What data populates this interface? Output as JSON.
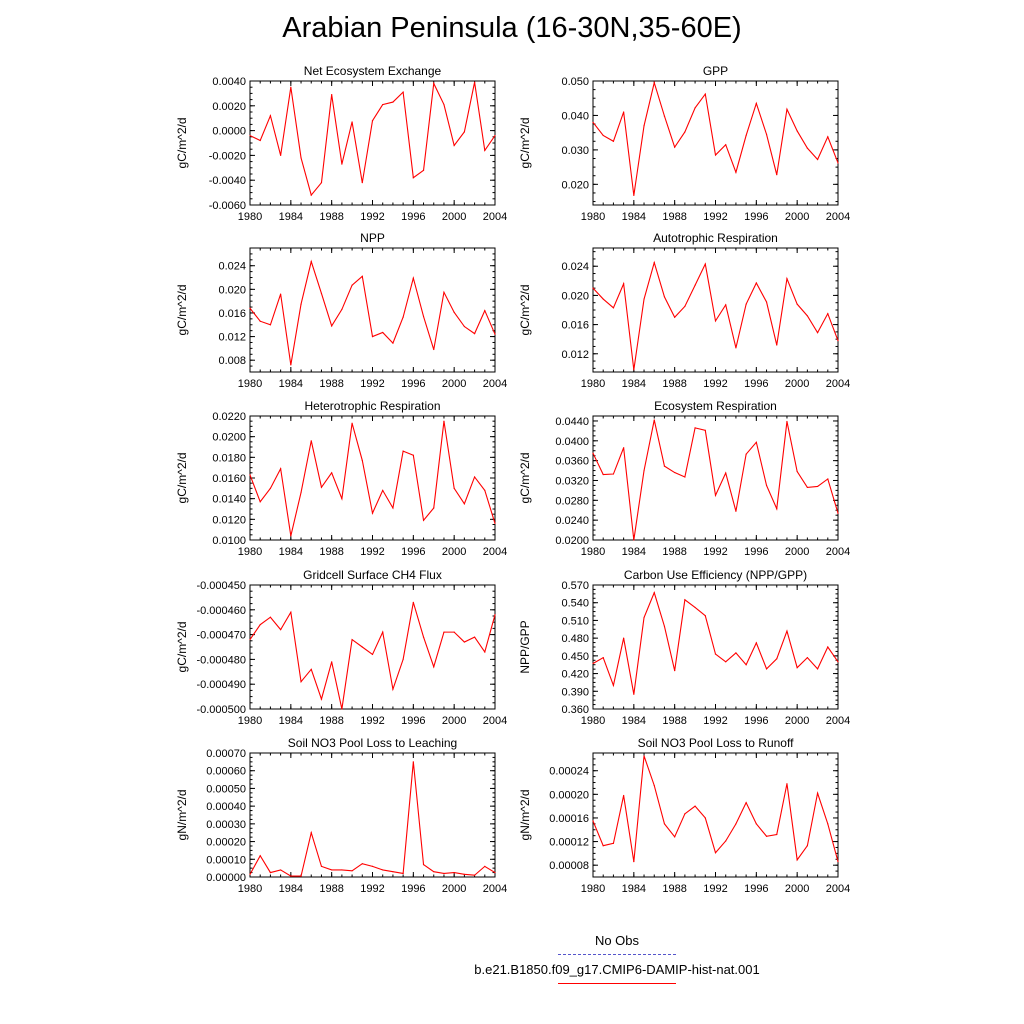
{
  "page_title": "Arabian Peninsula (16-30N,35-60E)",
  "legend": [
    {
      "label": "No Obs",
      "color": "#5555cc",
      "dash": "dashed"
    },
    {
      "label": "b.e21.B1850.f09_g17.CMIP6-DAMIP-hist-nat.001",
      "color": "#ff0000",
      "dash": "solid"
    }
  ],
  "chart_data": [
    {
      "type": "line",
      "title": "Net Ecosystem Exchange",
      "xlabel": "",
      "ylabel": "gC/m^2/d",
      "xlim": [
        1980,
        2004
      ],
      "ylim": [
        -0.006,
        0.004
      ],
      "xticks": [
        "1980",
        "1984",
        "1988",
        "1992",
        "1996",
        "2000",
        "2004"
      ],
      "yticks": [
        "-0.0060",
        "-0.0040",
        "-0.0020",
        "0.0000",
        "0.0020",
        "0.0040"
      ],
      "series": [
        {
          "color": "#ff0000",
          "x": [
            1980,
            1981,
            1982,
            1983,
            1984,
            1985,
            1986,
            1987,
            1988,
            1989,
            1990,
            1991,
            1992,
            1993,
            1994,
            1995,
            1996,
            1997,
            1998,
            1999,
            2000,
            2001,
            2002,
            2003,
            2004
          ],
          "values": [
            -0.0004,
            -0.0008,
            0.0012,
            -0.002,
            0.0035,
            -0.0022,
            -0.0052,
            -0.0042,
            0.0029,
            -0.0027,
            0.0007,
            -0.0042,
            0.0008,
            0.0021,
            0.0023,
            0.0031,
            -0.0038,
            -0.0032,
            0.0038,
            0.0021,
            -0.0012,
            -0.0001,
            0.0039,
            -0.0016,
            -0.0004
          ]
        }
      ]
    },
    {
      "type": "line",
      "title": "GPP",
      "xlabel": "",
      "ylabel": "gC/m^2/d",
      "xlim": [
        1980,
        2004
      ],
      "ylim": [
        0.014,
        0.05
      ],
      "xticks": [
        "1980",
        "1984",
        "1988",
        "1992",
        "1996",
        "2000",
        "2004"
      ],
      "yticks": [
        "0.020",
        "0.030",
        "0.040",
        "0.050"
      ],
      "series": [
        {
          "color": "#ff0000",
          "x": [
            1980,
            1981,
            1982,
            1983,
            1984,
            1985,
            1986,
            1987,
            1988,
            1989,
            1990,
            1991,
            1992,
            1993,
            1994,
            1995,
            1996,
            1997,
            1998,
            1999,
            2000,
            2001,
            2002,
            2003,
            2004
          ],
          "values": [
            0.038,
            0.0342,
            0.0325,
            0.041,
            0.0168,
            0.037,
            0.0495,
            0.0398,
            0.0308,
            0.0352,
            0.0422,
            0.0462,
            0.0285,
            0.0315,
            0.0235,
            0.0342,
            0.0435,
            0.0345,
            0.0228,
            0.0418,
            0.0355,
            0.0305,
            0.0272,
            0.0338,
            0.0262
          ]
        }
      ]
    },
    {
      "type": "line",
      "title": "NPP",
      "xlabel": "",
      "ylabel": "gC/m^2/d",
      "xlim": [
        1980,
        2004
      ],
      "ylim": [
        0.006,
        0.027
      ],
      "xticks": [
        "1980",
        "1984",
        "1988",
        "1992",
        "1996",
        "2000",
        "2004"
      ],
      "yticks": [
        "0.008",
        "0.012",
        "0.016",
        "0.020",
        "0.024"
      ],
      "series": [
        {
          "color": "#ff0000",
          "x": [
            1980,
            1981,
            1982,
            1983,
            1984,
            1985,
            1986,
            1987,
            1988,
            1989,
            1990,
            1991,
            1992,
            1993,
            1994,
            1995,
            1996,
            1997,
            1998,
            1999,
            2000,
            2001,
            2002,
            2003,
            2004
          ],
          "values": [
            0.0168,
            0.0146,
            0.014,
            0.0192,
            0.0072,
            0.0175,
            0.0247,
            0.0193,
            0.0138,
            0.0166,
            0.0207,
            0.0222,
            0.012,
            0.0127,
            0.0109,
            0.0153,
            0.0219,
            0.0154,
            0.0098,
            0.0195,
            0.0161,
            0.0137,
            0.0125,
            0.0164,
            0.0124
          ]
        }
      ]
    },
    {
      "type": "line",
      "title": "Autotrophic Respiration",
      "xlabel": "",
      "ylabel": "gC/m^2/d",
      "xlim": [
        1980,
        2004
      ],
      "ylim": [
        0.0095,
        0.0265
      ],
      "xticks": [
        "1980",
        "1984",
        "1988",
        "1992",
        "1996",
        "2000",
        "2004"
      ],
      "yticks": [
        "0.012",
        "0.016",
        "0.020",
        "0.024"
      ],
      "series": [
        {
          "color": "#ff0000",
          "x": [
            1980,
            1981,
            1982,
            1983,
            1984,
            1985,
            1986,
            1987,
            1988,
            1989,
            1990,
            1991,
            1992,
            1993,
            1994,
            1995,
            1996,
            1997,
            1998,
            1999,
            2000,
            2001,
            2002,
            2003,
            2004
          ],
          "values": [
            0.021,
            0.0195,
            0.0183,
            0.0216,
            0.0098,
            0.0195,
            0.0245,
            0.0198,
            0.017,
            0.0185,
            0.0214,
            0.0243,
            0.0165,
            0.0187,
            0.0128,
            0.0188,
            0.0217,
            0.0191,
            0.0132,
            0.0223,
            0.0188,
            0.0172,
            0.0149,
            0.0175,
            0.0138
          ]
        }
      ]
    },
    {
      "type": "line",
      "title": "Heterotrophic Respiration",
      "xlabel": "",
      "ylabel": "gC/m^2/d",
      "xlim": [
        1980,
        2004
      ],
      "ylim": [
        0.01,
        0.022
      ],
      "xticks": [
        "1980",
        "1984",
        "1988",
        "1992",
        "1996",
        "2000",
        "2004"
      ],
      "yticks": [
        "0.0100",
        "0.0120",
        "0.0140",
        "0.0160",
        "0.0180",
        "0.0200",
        "0.0220"
      ],
      "series": [
        {
          "color": "#ff0000",
          "x": [
            1980,
            1981,
            1982,
            1983,
            1984,
            1985,
            1986,
            1987,
            1988,
            1989,
            1990,
            1991,
            1992,
            1993,
            1994,
            1995,
            1996,
            1997,
            1998,
            1999,
            2000,
            2001,
            2002,
            2003,
            2004
          ],
          "values": [
            0.0163,
            0.0137,
            0.015,
            0.0169,
            0.0104,
            0.0146,
            0.0196,
            0.0151,
            0.0165,
            0.014,
            0.0213,
            0.0177,
            0.0126,
            0.0148,
            0.0131,
            0.0186,
            0.0182,
            0.0119,
            0.0131,
            0.0215,
            0.015,
            0.0135,
            0.0161,
            0.0148,
            0.0116
          ]
        }
      ]
    },
    {
      "type": "line",
      "title": "Ecosystem Respiration",
      "xlabel": "",
      "ylabel": "gC/m^2/d",
      "xlim": [
        1980,
        2004
      ],
      "ylim": [
        0.02,
        0.045
      ],
      "xticks": [
        "1980",
        "1984",
        "1988",
        "1992",
        "1996",
        "2000",
        "2004"
      ],
      "yticks": [
        "0.0200",
        "0.0240",
        "0.0280",
        "0.0320",
        "0.0360",
        "0.0400",
        "0.0440"
      ],
      "series": [
        {
          "color": "#ff0000",
          "x": [
            1980,
            1981,
            1982,
            1983,
            1984,
            1985,
            1986,
            1987,
            1988,
            1989,
            1990,
            1991,
            1992,
            1993,
            1994,
            1995,
            1996,
            1997,
            1998,
            1999,
            2000,
            2001,
            2002,
            2003,
            2004
          ],
          "values": [
            0.0375,
            0.0332,
            0.0333,
            0.0386,
            0.02,
            0.034,
            0.0442,
            0.0349,
            0.0336,
            0.0327,
            0.0426,
            0.0421,
            0.029,
            0.0335,
            0.0258,
            0.0373,
            0.0397,
            0.031,
            0.0263,
            0.0439,
            0.0338,
            0.0306,
            0.0308,
            0.0323,
            0.0254
          ]
        }
      ]
    },
    {
      "type": "line",
      "title": "Gridcell Surface CH4 Flux",
      "xlabel": "",
      "ylabel": "gC/m^2/d",
      "xlim": [
        1980,
        2004
      ],
      "ylim": [
        -0.0005,
        -0.00045
      ],
      "xticks": [
        "1980",
        "1984",
        "1988",
        "1992",
        "1996",
        "2000",
        "2004"
      ],
      "yticks": [
        "-0.000500",
        "-0.000490",
        "-0.000480",
        "-0.000470",
        "-0.000460",
        "-0.000450"
      ],
      "series": [
        {
          "color": "#ff0000",
          "x": [
            1980,
            1981,
            1982,
            1983,
            1984,
            1985,
            1986,
            1987,
            1988,
            1989,
            1990,
            1991,
            1992,
            1993,
            1994,
            1995,
            1996,
            1997,
            1998,
            1999,
            2000,
            2001,
            2002,
            2003,
            2004
          ],
          "values": [
            -0.000472,
            -0.000466,
            -0.000463,
            -0.000468,
            -0.000461,
            -0.000489,
            -0.000484,
            -0.000496,
            -0.000481,
            -0.0005,
            -0.000472,
            -0.000475,
            -0.000478,
            -0.000469,
            -0.000492,
            -0.00048,
            -0.000457,
            -0.000471,
            -0.000483,
            -0.000469,
            -0.000469,
            -0.000473,
            -0.000471,
            -0.000477,
            -0.000462
          ]
        }
      ]
    },
    {
      "type": "line",
      "title": "Carbon Use Efficiency (NPP/GPP)",
      "xlabel": "",
      "ylabel": "NPP/GPP",
      "xlim": [
        1980,
        2004
      ],
      "ylim": [
        0.36,
        0.57
      ],
      "xticks": [
        "1980",
        "1984",
        "1988",
        "1992",
        "1996",
        "2000",
        "2004"
      ],
      "yticks": [
        "0.360",
        "0.390",
        "0.420",
        "0.450",
        "0.480",
        "0.510",
        "0.540",
        "0.570"
      ],
      "series": [
        {
          "color": "#ff0000",
          "x": [
            1980,
            1981,
            1982,
            1983,
            1984,
            1985,
            1986,
            1987,
            1988,
            1989,
            1990,
            1991,
            1992,
            1993,
            1994,
            1995,
            1996,
            1997,
            1998,
            1999,
            2000,
            2001,
            2002,
            2003,
            2004
          ],
          "values": [
            0.437,
            0.447,
            0.4,
            0.48,
            0.385,
            0.515,
            0.557,
            0.5,
            0.425,
            0.545,
            0.532,
            0.518,
            0.453,
            0.44,
            0.455,
            0.435,
            0.472,
            0.428,
            0.445,
            0.492,
            0.43,
            0.447,
            0.428,
            0.465,
            0.44
          ]
        }
      ]
    },
    {
      "type": "line",
      "title": "Soil NO3 Pool Loss to Leaching",
      "xlabel": "",
      "ylabel": "gN/m^2/d",
      "xlim": [
        1980,
        2004
      ],
      "ylim": [
        0,
        0.0007
      ],
      "xticks": [
        "1980",
        "1984",
        "1988",
        "1992",
        "1996",
        "2000",
        "2004"
      ],
      "yticks": [
        "0.00000",
        "0.00010",
        "0.00020",
        "0.00030",
        "0.00040",
        "0.00050",
        "0.00060",
        "0.00070"
      ],
      "series": [
        {
          "color": "#ff0000",
          "x": [
            1980,
            1981,
            1982,
            1983,
            1984,
            1985,
            1986,
            1987,
            1988,
            1989,
            1990,
            1991,
            1992,
            1993,
            1994,
            1995,
            1996,
            1997,
            1998,
            1999,
            2000,
            2001,
            2002,
            2003,
            2004
          ],
          "values": [
            1.5e-05,
            0.00012,
            2.5e-05,
            4e-05,
            5e-06,
            5e-06,
            0.00025,
            6e-05,
            4e-05,
            4e-05,
            3.5e-05,
            7.5e-05,
            6e-05,
            4e-05,
            3e-05,
            2e-05,
            0.00065,
            7e-05,
            3e-05,
            2e-05,
            2.5e-05,
            1.5e-05,
            1e-05,
            6e-05,
            2.5e-05
          ]
        }
      ]
    },
    {
      "type": "line",
      "title": "Soil NO3 Pool Loss to Runoff",
      "xlabel": "",
      "ylabel": "gN/m^2/d",
      "xlim": [
        1980,
        2004
      ],
      "ylim": [
        6e-05,
        0.00027
      ],
      "xticks": [
        "1980",
        "1984",
        "1988",
        "1992",
        "1996",
        "2000",
        "2004"
      ],
      "yticks": [
        "0.00008",
        "0.00012",
        "0.00016",
        "0.00020",
        "0.00024"
      ],
      "series": [
        {
          "color": "#ff0000",
          "x": [
            1980,
            1981,
            1982,
            1983,
            1984,
            1985,
            1986,
            1987,
            1988,
            1989,
            1990,
            1991,
            1992,
            1993,
            1994,
            1995,
            1996,
            1997,
            1998,
            1999,
            2000,
            2001,
            2002,
            2003,
            2004
          ],
          "values": [
            0.000155,
            0.000113,
            0.000117,
            0.000198,
            8.6e-05,
            0.000265,
            0.000215,
            0.00015,
            0.000128,
            0.000167,
            0.00018,
            0.00016,
            0.000101,
            0.000121,
            0.00015,
            0.000186,
            0.00015,
            0.000129,
            0.000132,
            0.000218,
            8.9e-05,
            0.000113,
            0.000202,
            0.00015,
            8.6e-05
          ]
        }
      ]
    }
  ]
}
